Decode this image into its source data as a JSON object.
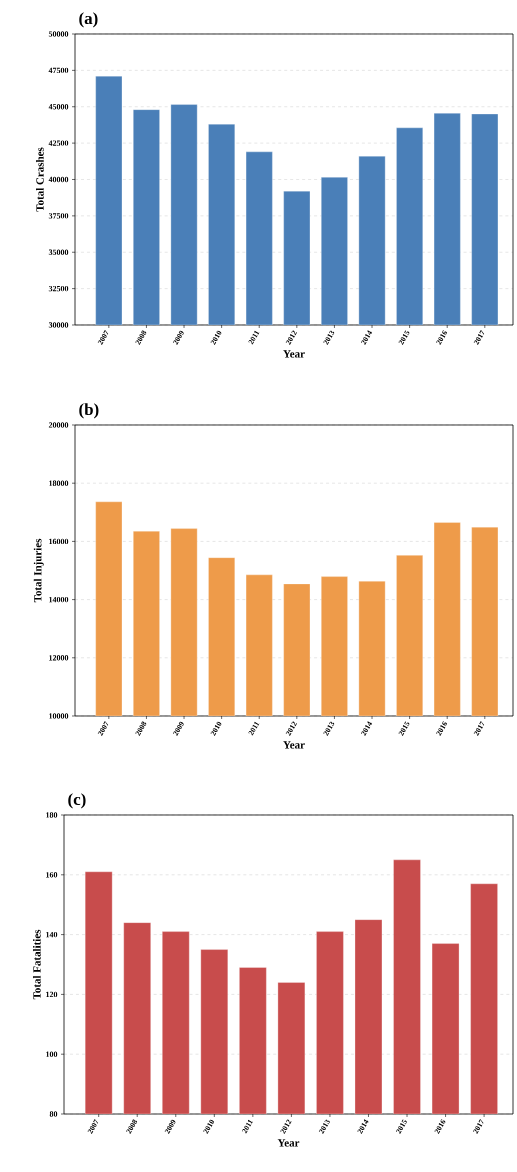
{
  "chart_data": [
    {
      "type": "bar",
      "title": "(a)",
      "xlabel": "Year",
      "ylabel": "Total Crashes",
      "categories": [
        "2007",
        "2008",
        "2009",
        "2010",
        "2011",
        "2012",
        "2013",
        "2014",
        "2015",
        "2016",
        "2017"
      ],
      "values": [
        47100,
        44800,
        45150,
        43800,
        41900,
        39200,
        40150,
        41600,
        43550,
        44550,
        44500
      ],
      "color": "#4a7fb8",
      "ylim": [
        30000,
        50000
      ],
      "yticks": [
        30000,
        32500,
        35000,
        37500,
        40000,
        42500,
        45000,
        47500,
        50000
      ],
      "grid": "y"
    },
    {
      "type": "bar",
      "title": "(b)",
      "xlabel": "Year",
      "ylabel": "Total Injuries",
      "categories": [
        "2007",
        "2008",
        "2009",
        "2010",
        "2011",
        "2012",
        "2013",
        "2014",
        "2015",
        "2016",
        "2017"
      ],
      "values": [
        17360,
        16350,
        16440,
        15440,
        14850,
        14540,
        14790,
        14630,
        15520,
        16650,
        16490
      ],
      "color": "#ee9b4a",
      "ylim": [
        10000,
        20000
      ],
      "yticks": [
        10000,
        12000,
        14000,
        16000,
        18000,
        20000
      ],
      "grid": "y"
    },
    {
      "type": "bar",
      "title": "(c)",
      "xlabel": "Year",
      "ylabel": "Total Fatalities",
      "categories": [
        "2007",
        "2008",
        "2009",
        "2010",
        "2011",
        "2012",
        "2013",
        "2014",
        "2015",
        "2016",
        "2017"
      ],
      "values": [
        161,
        144,
        141,
        135,
        129,
        124,
        141,
        145,
        165,
        137,
        157
      ],
      "color": "#c84c4c",
      "ylim": [
        80,
        180
      ],
      "yticks": [
        80,
        100,
        120,
        140,
        160,
        180
      ],
      "grid": "y"
    }
  ]
}
